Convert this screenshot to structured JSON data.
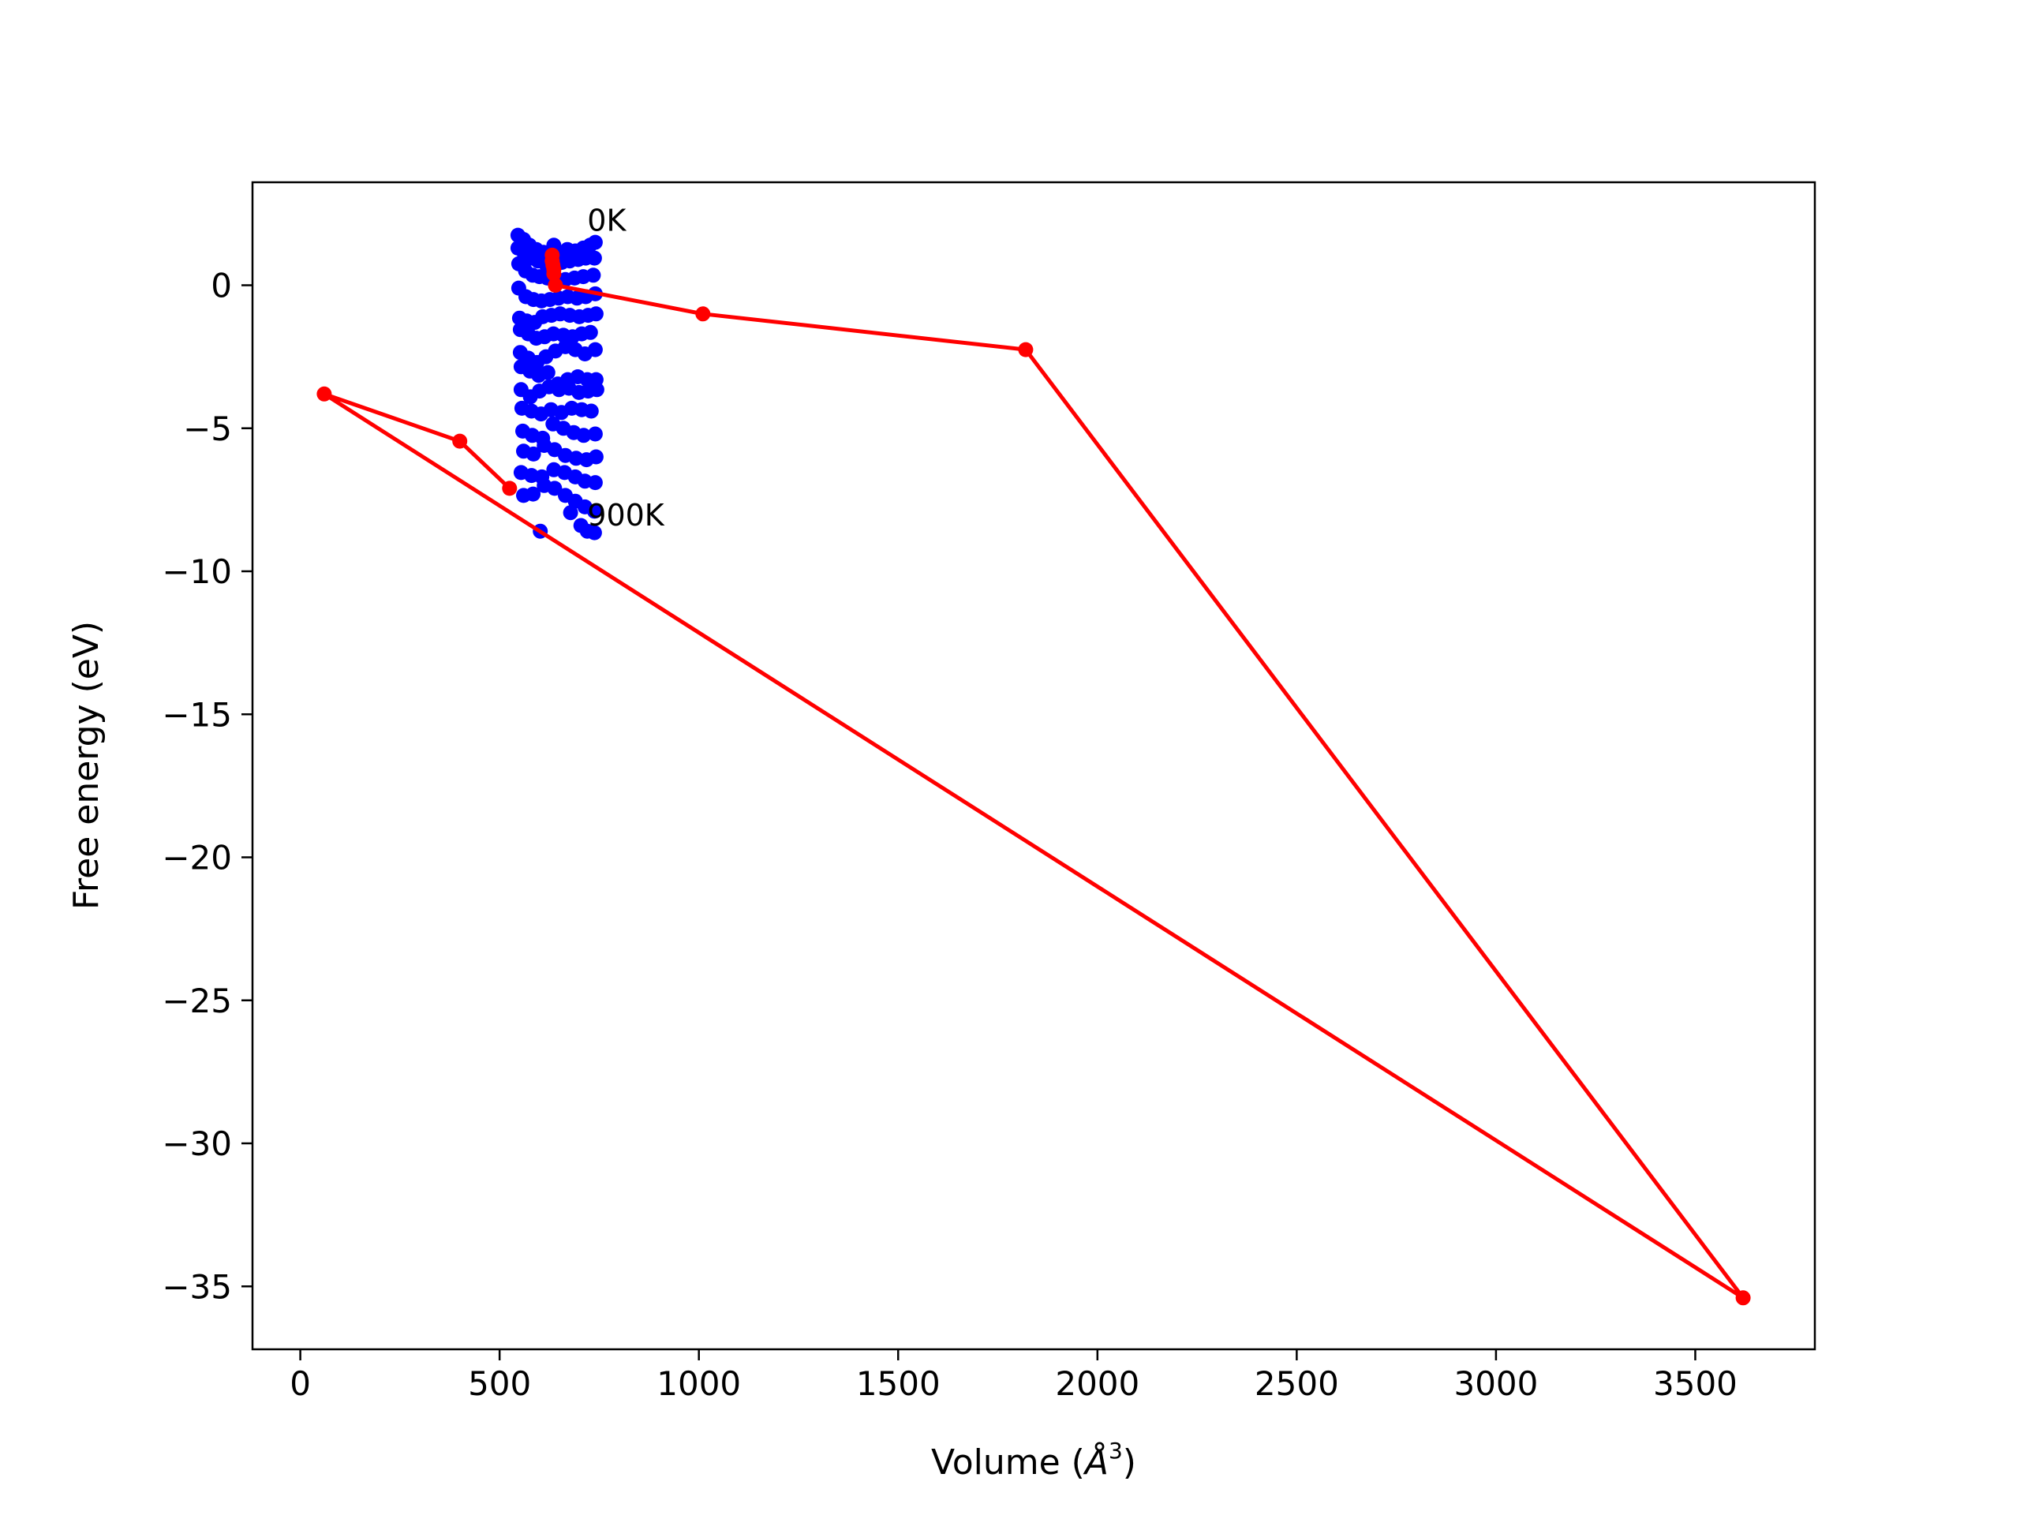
{
  "chart_data": {
    "type": "scatter",
    "title": "",
    "xlabel": "Volume (Å³)",
    "xlabel_parts": {
      "prefix": "Volume (",
      "symbol": "Å",
      "power": "3",
      "suffix": ")"
    },
    "ylabel": "Free energy (eV)",
    "xlim": [
      -120,
      3800
    ],
    "ylim": [
      -37.2,
      3.6
    ],
    "xticks": [
      0,
      500,
      1000,
      1500,
      2000,
      2500,
      3000,
      3500
    ],
    "yticks": [
      0,
      -5,
      -10,
      -15,
      -20,
      -25,
      -30,
      -35
    ],
    "ytick_labels": [
      "0",
      "−5",
      "−10",
      "−15",
      "−20",
      "−25",
      "−30",
      "−35"
    ],
    "grid": false,
    "legend": "none",
    "annotations": [
      {
        "text": "0K",
        "x": 720,
        "y": 1.9
      },
      {
        "text": "900K",
        "x": 720,
        "y": -8.4
      }
    ],
    "series": [
      {
        "color": "#0000ff",
        "marker": "circle",
        "line": false,
        "points": [
          [
            546,
            1.75
          ],
          [
            560,
            1.6
          ],
          [
            575,
            1.4
          ],
          [
            592,
            1.25
          ],
          [
            610,
            1.15
          ],
          [
            630,
            1.2
          ],
          [
            650,
            1.1
          ],
          [
            670,
            1.25
          ],
          [
            690,
            1.2
          ],
          [
            710,
            1.3
          ],
          [
            727,
            1.4
          ],
          [
            740,
            1.5
          ],
          [
            546,
            1.3
          ],
          [
            562,
            1.1
          ],
          [
            578,
            0.95
          ],
          [
            596,
            0.85
          ],
          [
            615,
            0.75
          ],
          [
            636,
            1.4
          ],
          [
            656,
            0.8
          ],
          [
            676,
            0.85
          ],
          [
            697,
            0.9
          ],
          [
            716,
            0.95
          ],
          [
            738,
            0.95
          ],
          [
            548,
            0.75
          ],
          [
            565,
            0.5
          ],
          [
            583,
            0.35
          ],
          [
            600,
            0.3
          ],
          [
            620,
            0.25
          ],
          [
            642,
            0.2
          ],
          [
            665,
            0.2
          ],
          [
            688,
            0.25
          ],
          [
            710,
            0.3
          ],
          [
            735,
            0.35
          ],
          [
            548,
            -0.1
          ],
          [
            566,
            -0.4
          ],
          [
            585,
            -0.5
          ],
          [
            605,
            -0.55
          ],
          [
            626,
            -0.5
          ],
          [
            648,
            -0.45
          ],
          [
            671,
            -0.4
          ],
          [
            694,
            -0.45
          ],
          [
            716,
            -0.4
          ],
          [
            740,
            -0.3
          ],
          [
            550,
            -1.15
          ],
          [
            568,
            -1.25
          ],
          [
            588,
            -1.3
          ],
          [
            608,
            -1.1
          ],
          [
            630,
            -1.05
          ],
          [
            652,
            -1.0
          ],
          [
            676,
            -1.05
          ],
          [
            700,
            -1.1
          ],
          [
            722,
            -1.05
          ],
          [
            742,
            -1.0
          ],
          [
            552,
            -1.55
          ],
          [
            572,
            -1.7
          ],
          [
            592,
            -1.85
          ],
          [
            613,
            -1.8
          ],
          [
            635,
            -1.7
          ],
          [
            660,
            -1.75
          ],
          [
            683,
            -1.8
          ],
          [
            706,
            -1.7
          ],
          [
            728,
            -1.65
          ],
          [
            552,
            -2.35
          ],
          [
            572,
            -2.55
          ],
          [
            594,
            -2.7
          ],
          [
            616,
            -2.5
          ],
          [
            640,
            -2.3
          ],
          [
            665,
            -2.15
          ],
          [
            690,
            -2.25
          ],
          [
            714,
            -2.4
          ],
          [
            740,
            -2.25
          ],
          [
            554,
            -2.85
          ],
          [
            576,
            -3.0
          ],
          [
            598,
            -3.15
          ],
          [
            621,
            -3.05
          ],
          [
            646,
            -3.45
          ],
          [
            671,
            -3.3
          ],
          [
            696,
            -3.2
          ],
          [
            720,
            -3.3
          ],
          [
            742,
            -3.3
          ],
          [
            554,
            -3.65
          ],
          [
            577,
            -3.9
          ],
          [
            600,
            -3.7
          ],
          [
            624,
            -3.55
          ],
          [
            649,
            -3.65
          ],
          [
            674,
            -3.6
          ],
          [
            699,
            -3.75
          ],
          [
            722,
            -3.7
          ],
          [
            744,
            -3.65
          ],
          [
            556,
            -4.3
          ],
          [
            580,
            -4.4
          ],
          [
            604,
            -4.5
          ],
          [
            629,
            -4.35
          ],
          [
            655,
            -4.45
          ],
          [
            681,
            -4.3
          ],
          [
            706,
            -4.35
          ],
          [
            730,
            -4.4
          ],
          [
            558,
            -5.1
          ],
          [
            582,
            -5.25
          ],
          [
            608,
            -5.35
          ],
          [
            634,
            -4.85
          ],
          [
            660,
            -5.0
          ],
          [
            686,
            -5.15
          ],
          [
            711,
            -5.25
          ],
          [
            740,
            -5.2
          ],
          [
            560,
            -5.8
          ],
          [
            585,
            -5.9
          ],
          [
            612,
            -5.6
          ],
          [
            638,
            -5.75
          ],
          [
            665,
            -5.95
          ],
          [
            692,
            -6.05
          ],
          [
            718,
            -6.1
          ],
          [
            742,
            -6.0
          ],
          [
            554,
            -6.55
          ],
          [
            580,
            -6.65
          ],
          [
            606,
            -6.7
          ],
          [
            636,
            -6.45
          ],
          [
            663,
            -6.55
          ],
          [
            690,
            -6.7
          ],
          [
            714,
            -6.85
          ],
          [
            740,
            -6.9
          ],
          [
            560,
            -7.35
          ],
          [
            584,
            -7.3
          ],
          [
            612,
            -7.0
          ],
          [
            638,
            -7.1
          ],
          [
            665,
            -7.35
          ],
          [
            690,
            -7.55
          ],
          [
            714,
            -7.75
          ],
          [
            738,
            -7.9
          ],
          [
            602,
            -8.6
          ],
          [
            678,
            -7.95
          ],
          [
            704,
            -8.4
          ],
          [
            720,
            -8.6
          ],
          [
            738,
            -8.65
          ]
        ]
      },
      {
        "color": "#ff0000",
        "marker": "circle",
        "line": true,
        "points": [
          [
            632,
            1.05
          ],
          [
            632,
            0.85
          ],
          [
            634,
            0.7
          ],
          [
            636,
            0.55
          ],
          [
            636,
            0.4
          ],
          [
            640,
            0.0
          ],
          [
            1010,
            -1.0
          ],
          [
            1820,
            -2.25
          ],
          [
            3620,
            -35.4
          ],
          [
            60,
            -3.8
          ],
          [
            400,
            -5.45
          ],
          [
            525,
            -7.1
          ]
        ]
      }
    ]
  }
}
